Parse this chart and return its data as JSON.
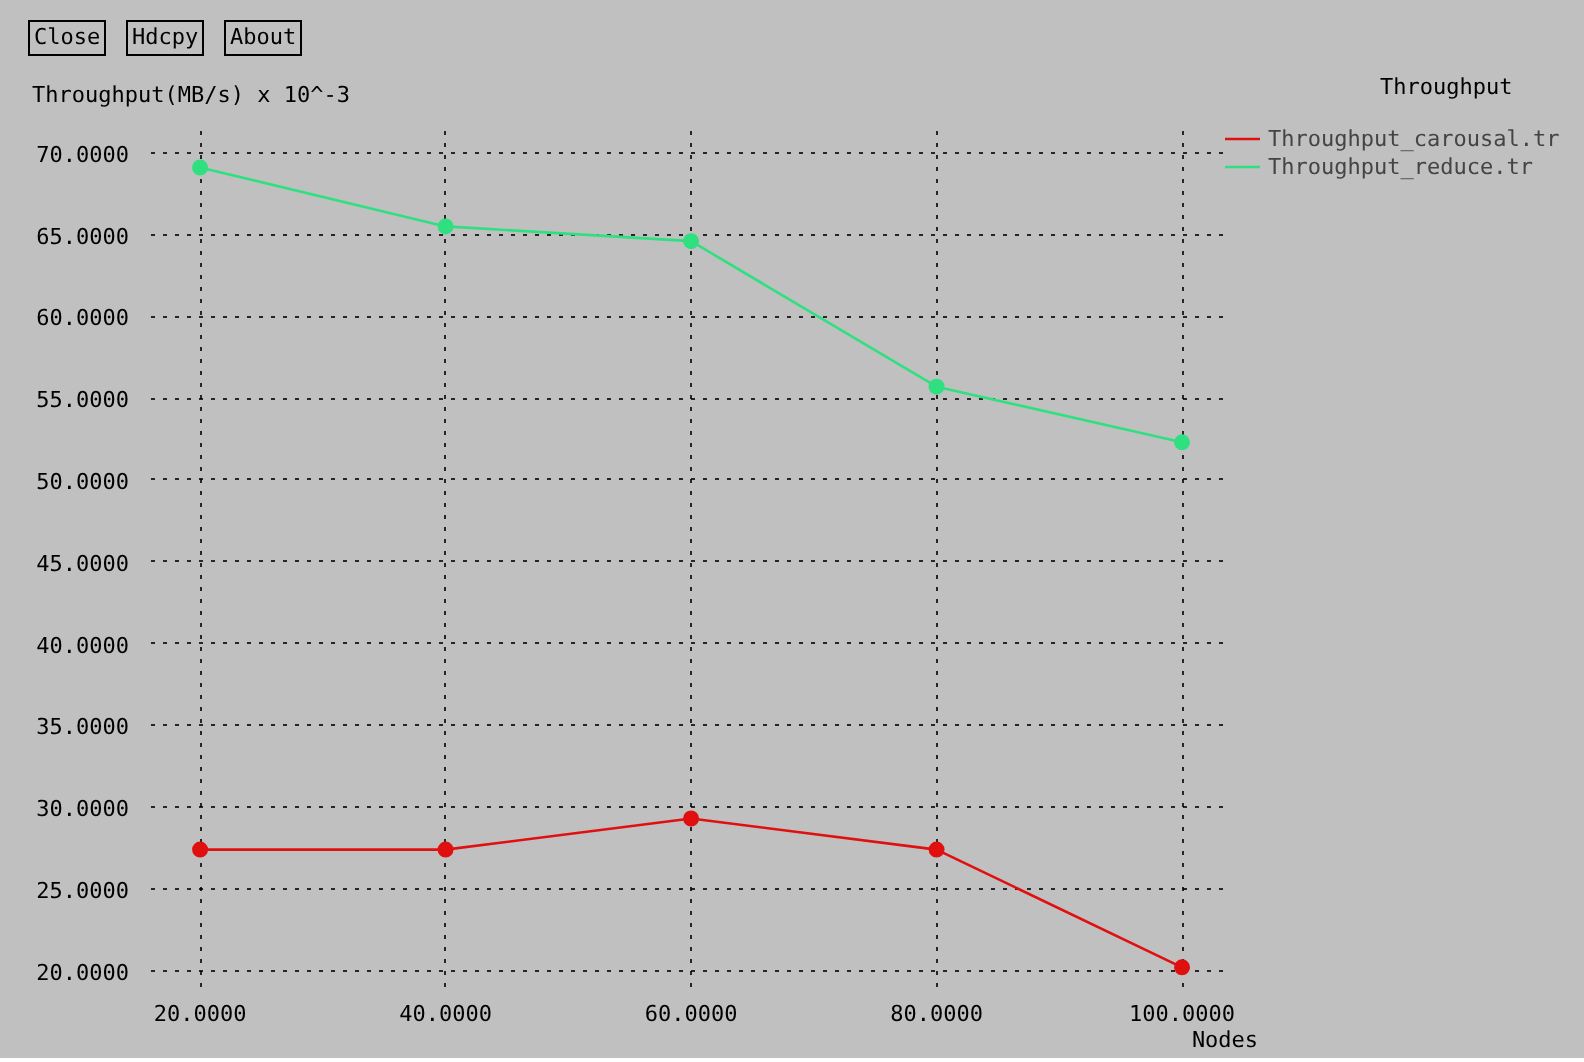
{
  "chart_data": {
    "type": "line",
    "title": "Throughput",
    "xlabel": "Nodes",
    "ylabel": "Throughput(MB/s) x 10^-3",
    "x": [
      20,
      40,
      60,
      80,
      100
    ],
    "series": [
      {
        "name": "Throughput_carousal.tr",
        "color": "#e01010",
        "values": [
          27.4,
          27.4,
          29.3,
          27.4,
          20.2
        ]
      },
      {
        "name": "Throughput_reduce.tr",
        "color": "#30e080",
        "values": [
          69.1,
          65.5,
          64.6,
          55.7,
          52.3
        ]
      }
    ],
    "xlim": [
      16,
      103.5
    ],
    "ylim": [
      19,
      71.7
    ],
    "xticks": [
      {
        "value": 20,
        "label": "20.0000"
      },
      {
        "value": 40,
        "label": "40.0000"
      },
      {
        "value": 60,
        "label": "60.0000"
      },
      {
        "value": 80,
        "label": "80.0000"
      },
      {
        "value": 100,
        "label": "100.0000"
      }
    ],
    "yticks": [
      {
        "value": 20,
        "label": "20.0000"
      },
      {
        "value": 25,
        "label": "25.0000"
      },
      {
        "value": 30,
        "label": "30.0000"
      },
      {
        "value": 35,
        "label": "35.0000"
      },
      {
        "value": 40,
        "label": "40.0000"
      },
      {
        "value": 45,
        "label": "45.0000"
      },
      {
        "value": 50,
        "label": "50.0000"
      },
      {
        "value": 55,
        "label": "55.0000"
      },
      {
        "value": 60,
        "label": "60.0000"
      },
      {
        "value": 65,
        "label": "65.0000"
      },
      {
        "value": 70,
        "label": "70.0000"
      }
    ],
    "annotations": [
      "Close",
      "Hdcpy",
      "About"
    ],
    "grid": true,
    "legend": "top right",
    "marker": "circle",
    "line_style": "solid"
  }
}
